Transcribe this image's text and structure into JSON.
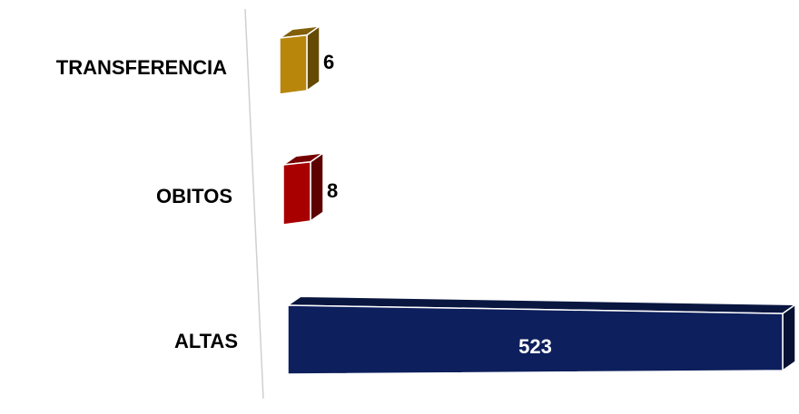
{
  "chart_data": {
    "type": "bar",
    "orientation": "horizontal",
    "categories": [
      "TRANSFERENCIA",
      "OBITOS",
      "ALTAS"
    ],
    "values": [
      6,
      8,
      523
    ],
    "colors": [
      "#b8860b",
      "#a80000",
      "#0d1f5c"
    ],
    "value_label_colors": [
      "#000000",
      "#000000",
      "#ffffff"
    ],
    "title": "",
    "xlabel": "",
    "ylabel": "",
    "grid": false,
    "legend": "none",
    "style": "3d"
  }
}
